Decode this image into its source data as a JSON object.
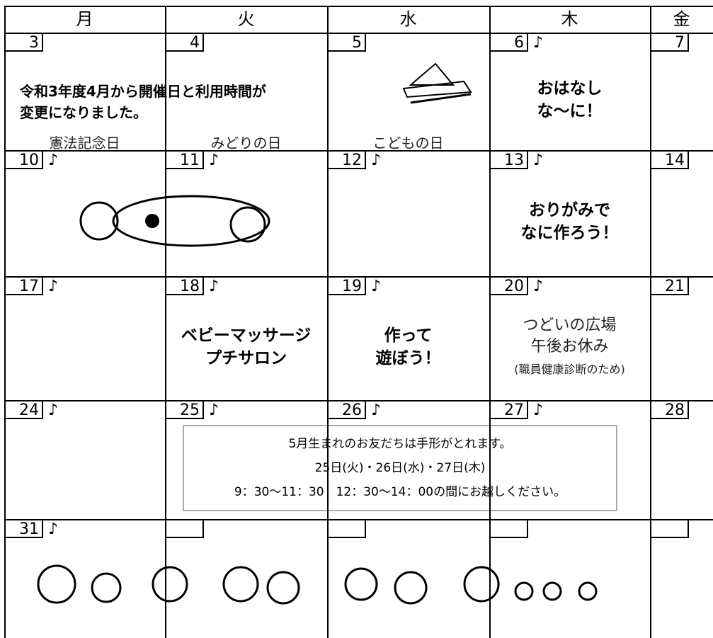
{
  "header": {
    "weekdays": [
      "月",
      "火",
      "水",
      "木",
      "金"
    ]
  },
  "announcement": [
    "令和3年度4月から開催日と利用時間が",
    "変更になりました。"
  ],
  "weeks": [
    {
      "days": [
        {
          "date": "3",
          "holiday": "憲法記念日"
        },
        {
          "date": "4",
          "holiday": "みどりの日"
        },
        {
          "date": "5",
          "holiday": "こどもの日"
        },
        {
          "date": "6",
          "mark": "♪",
          "event": [
            "おはなし",
            "な～に！"
          ]
        },
        {
          "date": "7"
        }
      ]
    },
    {
      "days": [
        {
          "date": "10",
          "mark": "♪"
        },
        {
          "date": "11",
          "mark": "♪"
        },
        {
          "date": "12",
          "mark": "♪"
        },
        {
          "date": "13",
          "mark": "♪",
          "event": [
            "おりがみで",
            "なに作ろう！"
          ]
        },
        {
          "date": "14"
        }
      ]
    },
    {
      "days": [
        {
          "date": "17",
          "mark": "♪"
        },
        {
          "date": "18",
          "mark": "♪",
          "event": [
            "ベビーマッサージ",
            "プチサロン"
          ]
        },
        {
          "date": "19",
          "mark": "♪",
          "event": [
            "作って",
            "遊ぼう！"
          ]
        },
        {
          "date": "20",
          "mark": "♪",
          "closure": [
            "つどいの広場",
            "午後お休み"
          ],
          "note": "(職員健康診断のため)"
        },
        {
          "date": "21"
        }
      ]
    },
    {
      "days": [
        {
          "date": "24",
          "mark": "♪"
        },
        {
          "date": "25",
          "mark": "♪"
        },
        {
          "date": "26",
          "mark": "♪"
        },
        {
          "date": "27",
          "mark": "♪"
        },
        {
          "date": "28"
        }
      ]
    },
    {
      "days": [
        {
          "date": "31",
          "mark": "♪"
        }
      ]
    }
  ],
  "notice": [
    "5月生まれのお友だちは手形がとれます。",
    "25日(火)・26日(水)・27日(木)",
    "9：30～11：30　12：30～14：00の間にお越しください。"
  ]
}
